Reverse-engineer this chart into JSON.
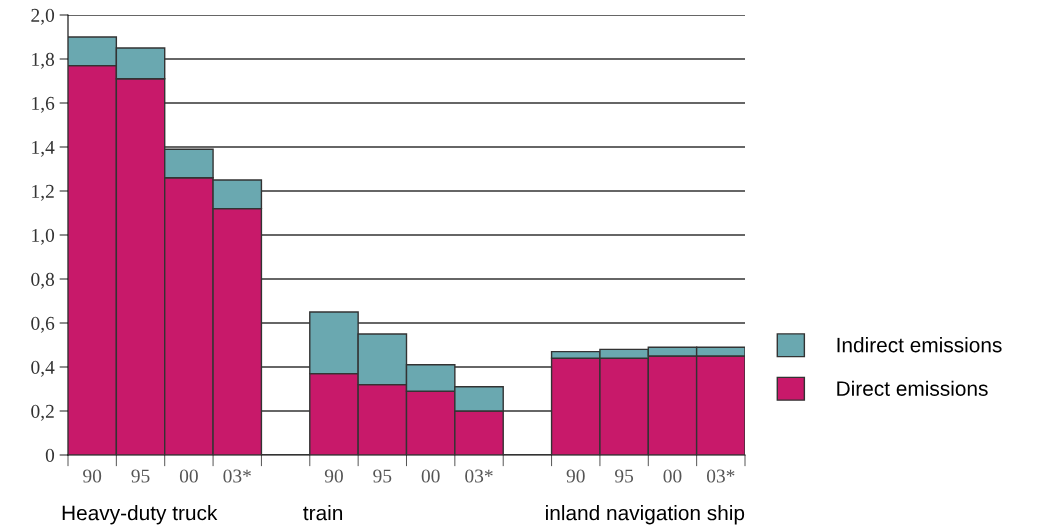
{
  "chart_data": {
    "type": "bar",
    "stacked": true,
    "categories": [
      "90",
      "95",
      "00",
      "03*",
      null,
      "90",
      "95",
      "00",
      "03*",
      null,
      "90",
      "95",
      "00",
      "03*"
    ],
    "series": [
      {
        "name": "Direct emissions",
        "color": "#c8196a",
        "values": [
          1.77,
          1.71,
          1.26,
          1.12,
          null,
          0.37,
          0.32,
          0.29,
          0.2,
          null,
          0.44,
          0.44,
          0.45,
          0.45
        ]
      },
      {
        "name": "Indirect emissions",
        "color": "#6aa8b0",
        "values": [
          0.13,
          0.14,
          0.13,
          0.13,
          null,
          0.28,
          0.23,
          0.12,
          0.11,
          null,
          0.03,
          0.04,
          0.04,
          0.04
        ]
      }
    ],
    "ylim": [
      0,
      2.0
    ],
    "yticks": [
      0,
      {
        "value": 0.2,
        "label": "0,2"
      },
      {
        "value": 0.4,
        "label": "0,4"
      },
      {
        "value": 0.6,
        "label": "0,6"
      },
      {
        "value": 0.8,
        "label": "0,8"
      },
      {
        "value": 1.0,
        "label": "1,0"
      },
      {
        "value": 1.2,
        "label": "1,2"
      },
      {
        "value": 1.4,
        "label": "1,4"
      },
      {
        "value": 1.6,
        "label": "1,6"
      },
      {
        "value": 1.8,
        "label": "1,8"
      },
      {
        "value": 2.0,
        "label": "2,0"
      }
    ],
    "grid": "y",
    "legend": "right",
    "annotations": [
      "Heavy-duty truck",
      "train",
      "inland navigation ship"
    ]
  }
}
